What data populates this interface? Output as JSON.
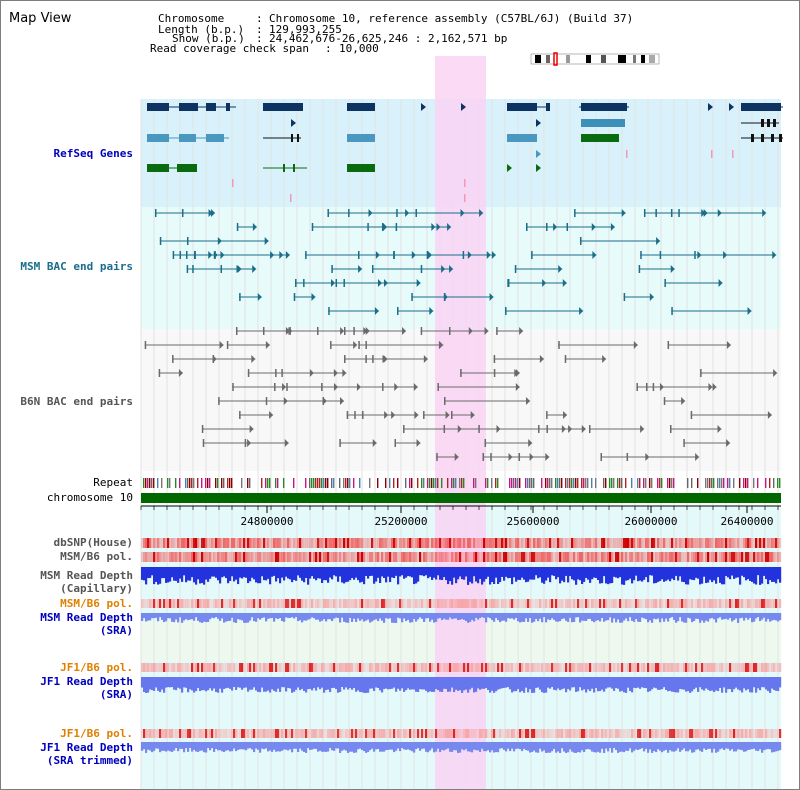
{
  "page": {
    "title": "Map View"
  },
  "header": {
    "chromosome_key": "Chromosome",
    "chromosome_val": "Chromosome 10, reference assembly (C57BL/6J) (Build 37)",
    "length_key": "Length (b.p.)",
    "length_val": "129,993,255",
    "show_key": "Show (b.p.)",
    "show_val": "24,462,676-26,625,246 : 2,162,571 bp",
    "coverage_key": "Read coverage check span",
    "coverage_val": "10,000"
  },
  "tracks": {
    "refseq": "RefSeq Genes",
    "msm_bac": "MSM BAC end pairs",
    "b6n_bac": "B6N BAC end pairs",
    "repeat": "Repeat",
    "chromosome": "chromosome 10",
    "dbsnp": "dbSNP(House)",
    "msm_b6_pol": "MSM/B6 pol.",
    "msm_depth_cap_1": "MSM Read Depth",
    "msm_depth_cap_2": "(Capillary)",
    "msm_b6_pol_2": "MSM/B6 pol.",
    "msm_depth_sra_1": "MSM Read Depth",
    "msm_depth_sra_2": "(SRA)",
    "jf1_pol": "JF1/B6 pol.",
    "jf1_depth_1": "JF1 Read Depth",
    "jf1_depth_2": "(SRA)",
    "jf1_pol_2": "JF1/B6 pol.",
    "jf1_trim_1": "JF1 Read Depth",
    "jf1_trim_2": "(SRA trimmed)"
  },
  "axis": {
    "ticks": [
      "24800000",
      "25200000",
      "25600000",
      "26000000",
      "26400000"
    ]
  },
  "colors": {
    "refseq_label": "#0000c0",
    "msm_bac_label": "#1a6e8a",
    "b6n_bac_label": "#555555",
    "orange_label": "#e08000",
    "blue_label": "#0000c0",
    "highlight": "#f9d3f3"
  }
}
